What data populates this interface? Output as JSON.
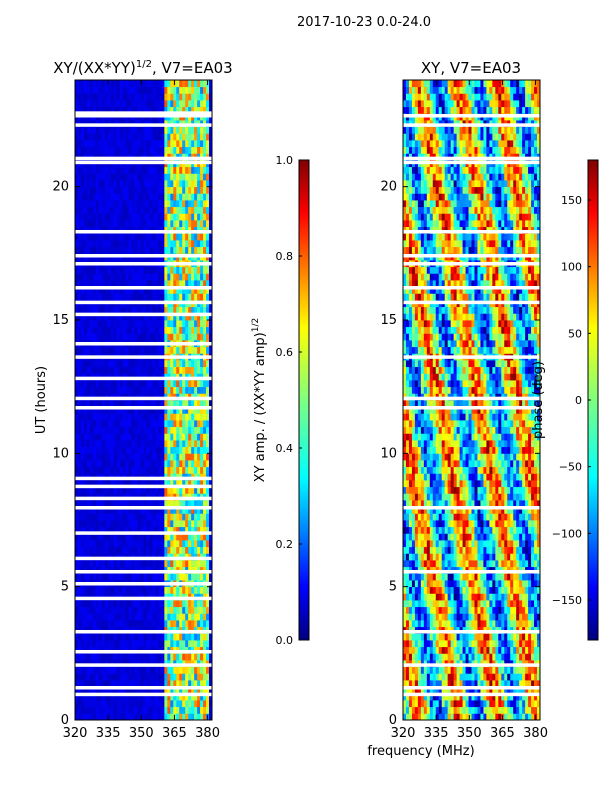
{
  "suptitle": "2017-10-23 0.0-24.0",
  "colors": {
    "jet": [
      "#00007f",
      "#0000ff",
      "#007fff",
      "#00ffff",
      "#7fff7f",
      "#ffff00",
      "#ff7f00",
      "#ff0000",
      "#7f0000"
    ],
    "blank": "#ffffff",
    "axis": "#000000"
  },
  "chart_data": [
    {
      "type": "heatmap",
      "title_main": "XY/(XX*YY)",
      "title_sup": "1/2",
      "title_tail": ", V7=EA03",
      "xlabel": "",
      "ylabel": "UT (hours)",
      "xlim": [
        320,
        382
      ],
      "ylim": [
        0,
        24
      ],
      "xticks": [
        320,
        335,
        350,
        365,
        380
      ],
      "yticks": [
        0,
        5,
        10,
        15,
        20
      ],
      "value_range": [
        0.0,
        1.0
      ],
      "description_free_channels": "bright features near 360-380 MHz, low amplitude elsewhere",
      "blank_hours": [
        0.95,
        1.2,
        2.05,
        2.55,
        3.3,
        4.55,
        5.1,
        5.55,
        6.05,
        7.0,
        7.95,
        8.3,
        8.75,
        9.05,
        11.7,
        12.05,
        12.8,
        13.6,
        14.1,
        15.2,
        15.65,
        16.2,
        17.1,
        17.4,
        18.3,
        20.9,
        21.05,
        22.3,
        22.65,
        22.75
      ],
      "colorbar": {
        "label_main": "XY amp. / (XX*YY amp)",
        "label_sup": "1/2",
        "range": [
          0.0,
          1.0
        ],
        "ticks": [
          0.0,
          0.2,
          0.4,
          0.6,
          0.8,
          1.0
        ],
        "tick_labels": [
          "0.0",
          "0.2",
          "0.4",
          "0.6",
          "0.8",
          "1.0"
        ]
      }
    },
    {
      "type": "heatmap",
      "title_main": "XY, V7=EA03",
      "xlabel": "frequency (MHz)",
      "ylabel": "",
      "xlim": [
        320,
        382
      ],
      "ylim": [
        0,
        24
      ],
      "xticks": [
        320,
        335,
        350,
        365,
        380
      ],
      "yticks": [
        0,
        5,
        10,
        15,
        20
      ],
      "value_range": [
        -180,
        180
      ],
      "blank_hours": [
        0.95,
        1.2,
        2.05,
        3.3,
        5.55,
        7.95,
        11.7,
        12.05,
        13.6,
        15.65,
        16.2,
        17.1,
        17.4,
        18.3,
        20.9,
        21.05,
        22.3,
        22.65
      ],
      "colorbar": {
        "label_main": "phase (deg)",
        "range": [
          -180,
          180
        ],
        "ticks": [
          -150,
          -100,
          -50,
          0,
          50,
          100,
          150
        ],
        "tick_labels": [
          "−150",
          "−100",
          "−50",
          "0",
          "50",
          "100",
          "150"
        ]
      }
    }
  ]
}
